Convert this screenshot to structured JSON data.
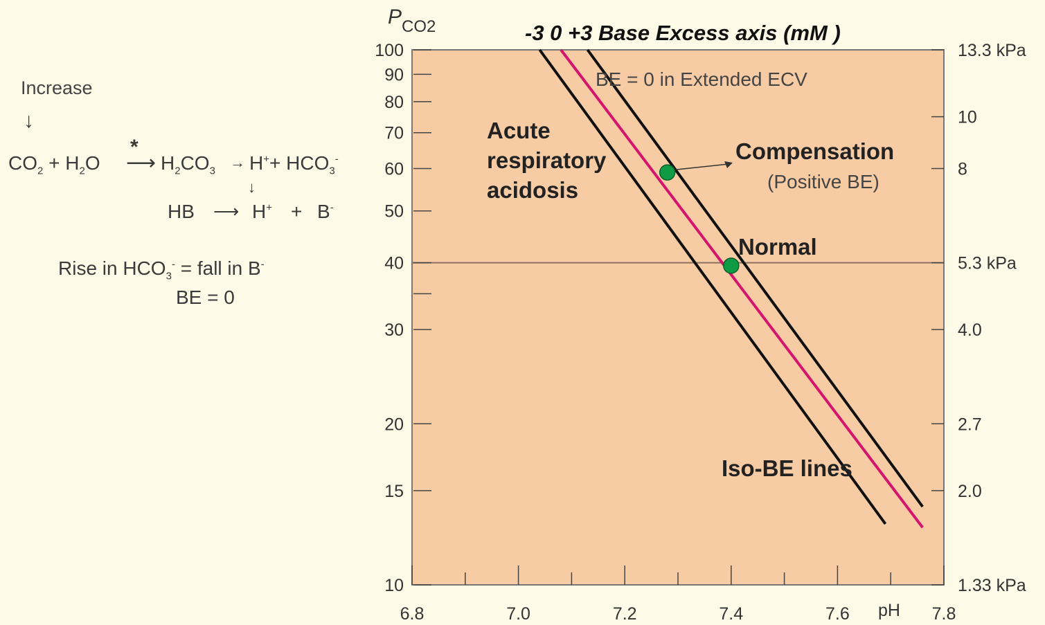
{
  "equations": {
    "increase": "Increase",
    "co2": "CO",
    "co2_sub": "2",
    "plus_h2o": " + H",
    "h2o_sub": "2",
    "h2o_o": "O",
    "star": "*",
    "h2co3_h": "H",
    "h2co3_sub1": "2",
    "h2co3_co": "CO",
    "h2co3_sub2": "3",
    "h_plus": "H",
    "h_plus_sup": "+",
    "plus_hco3": "+ HCO",
    "hco3_sub": "3",
    "hco3_sup": "-",
    "hb": "HB",
    "h_plus2": "H",
    "h_plus2_sup": "+",
    "plus": "+",
    "b": "B",
    "b_sup": "-",
    "rise_text": "Rise in HCO",
    "rise_sub": "3",
    "rise_sup": "-",
    "rise_rest": " = fall in B",
    "rise_b_sup": "-",
    "be_zero": "BE = 0"
  },
  "chart_data": {
    "type": "line",
    "title": "-3 0 +3 Base Excess axis (mM )",
    "xlabel": "pH",
    "ylabel_main": "P",
    "ylabel_sub": "CO2",
    "x_scale": "linear",
    "y_scale": "log",
    "xlim": [
      6.8,
      7.8
    ],
    "ylim": [
      10,
      100
    ],
    "x_ticks": [
      "6.8",
      "7.0",
      "7.2",
      "7.4",
      "7.6",
      "7.8"
    ],
    "y_ticks": [
      10,
      15,
      20,
      30,
      40,
      50,
      60,
      70,
      80,
      90,
      100
    ],
    "y_tick_labels": [
      "10",
      "15",
      "20",
      "30",
      "40",
      "50",
      "60",
      "70",
      "80",
      "90",
      "100"
    ],
    "y_ticks_unlabeled": [
      35
    ],
    "right_axis_ticks": [
      {
        "mmHg": 100,
        "label": "13.3 kPa"
      },
      {
        "mmHg": 75,
        "label": "10"
      },
      {
        "mmHg": 60,
        "label": "8"
      },
      {
        "mmHg": 40,
        "label": "5.3 kPa"
      },
      {
        "mmHg": 30,
        "label": "4.0"
      },
      {
        "mmHg": 20,
        "label": "2.7"
      },
      {
        "mmHg": 15,
        "label": "2.0"
      },
      {
        "mmHg": 10,
        "label": "1.33 kPa"
      }
    ],
    "reference_line_y": 40,
    "series": [
      {
        "name": "-3",
        "color": "#111111",
        "x": [
          7.04,
          7.69
        ],
        "y": [
          100,
          13
        ]
      },
      {
        "name": "0",
        "color": "#d4156e",
        "x": [
          7.08,
          7.76
        ],
        "y": [
          100,
          12.8
        ]
      },
      {
        "name": "+3",
        "color": "#111111",
        "x": [
          7.13,
          7.76
        ],
        "y": [
          100,
          14
        ]
      }
    ],
    "points": [
      {
        "label": "Compensation",
        "x": 7.28,
        "y": 59,
        "color": "#0f9a44"
      },
      {
        "label": "Normal",
        "x": 7.4,
        "y": 39.5,
        "color": "#0f9a44"
      }
    ],
    "annotations": {
      "be_zero_ecv": "BE = 0 in Extended ECV",
      "acute_1": "Acute",
      "acute_2": "respiratory",
      "acute_3": "acidosis",
      "compensation": "Compensation",
      "positive_be": "(Positive BE)",
      "normal": "Normal",
      "iso_be": "Iso-BE lines"
    },
    "colors": {
      "plot_bg": "#f7cca4",
      "frame": "#777777",
      "page_bg": "#fdfbe8"
    },
    "grid": false
  }
}
